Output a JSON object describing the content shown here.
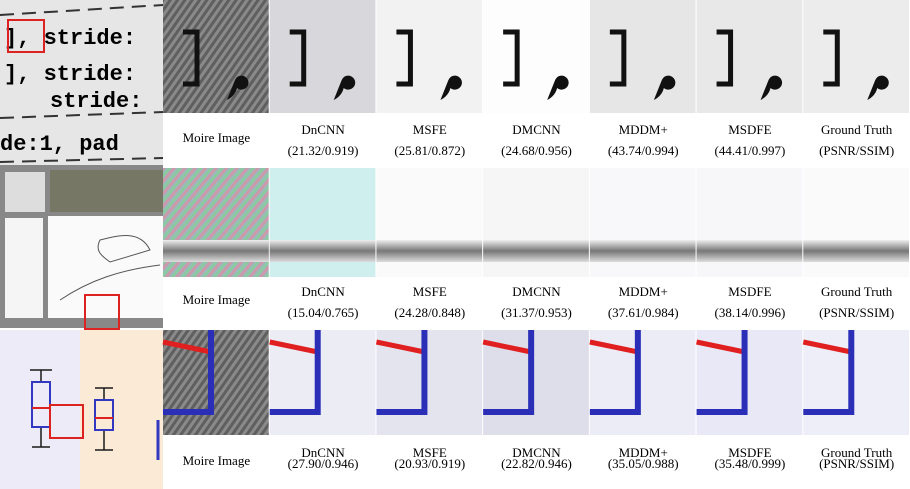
{
  "figure": {
    "source_text": [
      "], stride:",
      "], stride:",
      "stride:",
      "de:1, pad"
    ],
    "rows": [
      {
        "panels": [
          {
            "label": "Moire Image"
          },
          {
            "label": "DnCNN",
            "metrics": "(21.32/0.919)"
          },
          {
            "label": "MSFE",
            "metrics": "(25.81/0.872)"
          },
          {
            "label": "DMCNN",
            "metrics": "(24.68/0.956)"
          },
          {
            "label": "MDDM+",
            "metrics": "(43.74/0.994)"
          },
          {
            "label": "MSDFE",
            "metrics": "(44.41/0.997)"
          },
          {
            "label": "Ground Truth",
            "metrics": "(PSNR/SSIM)"
          }
        ]
      },
      {
        "panels": [
          {
            "label": "Moire Image"
          },
          {
            "label": "DnCNN",
            "metrics": "(15.04/0.765)"
          },
          {
            "label": "MSFE",
            "metrics": "(24.28/0.848)"
          },
          {
            "label": "DMCNN",
            "metrics": "(31.37/0.953)"
          },
          {
            "label": "MDDM+",
            "metrics": "(37.61/0.984)"
          },
          {
            "label": "MSDFE",
            "metrics": "(38.14/0.996)"
          },
          {
            "label": "Ground Truth",
            "metrics": "(PSNR/SSIM)"
          }
        ]
      },
      {
        "panels": [
          {
            "label": "Moire Image"
          },
          {
            "label": "DnCNN",
            "metrics": "(27.90/0.946)"
          },
          {
            "label": "MSFE",
            "metrics": "(20.93/0.919)"
          },
          {
            "label": "DMCNN",
            "metrics": "(22.82/0.946)"
          },
          {
            "label": "MDDM+",
            "metrics": "(35.05/0.988)"
          },
          {
            "label": "MSDFE",
            "metrics": "(35.48/0.999)"
          },
          {
            "label": "Ground Truth",
            "metrics": "(PSNR/SSIM)"
          }
        ]
      }
    ]
  }
}
